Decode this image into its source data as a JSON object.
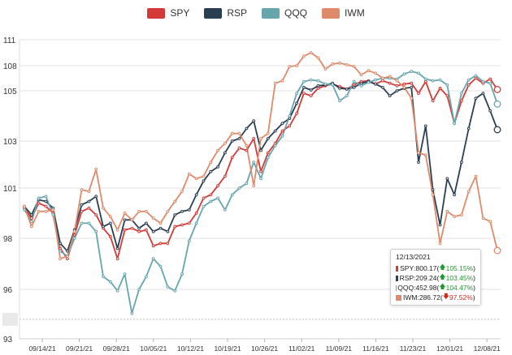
{
  "legend": {
    "items": [
      {
        "name": "SPY",
        "color": "#d33a37"
      },
      {
        "name": "RSP",
        "color": "#2b3f52"
      },
      {
        "name": "QQQ",
        "color": "#67a5ad"
      },
      {
        "name": "IWM",
        "color": "#df8a6a"
      }
    ]
  },
  "tooltip": {
    "date": "12/13/2021",
    "rows": [
      {
        "series": "SPY",
        "value": "800.17",
        "change": "105.15%",
        "direction": "up",
        "color": "#d33a37"
      },
      {
        "series": "RSP",
        "value": "209.24",
        "change": "103.45%",
        "direction": "up",
        "color": "#2b3f52"
      },
      {
        "series": "QQQ",
        "value": "452.98",
        "change": "104.47%",
        "direction": "up",
        "color": "#67a5ad"
      },
      {
        "series": "IWM",
        "value": "286.72",
        "change": "97.52%",
        "direction": "down",
        "color": "#df8a6a"
      }
    ]
  },
  "chart_data": {
    "type": "line",
    "x_tick_labels": [
      "09/14/21",
      "09/21/21",
      "09/28/21",
      "10/05/21",
      "10/12/21",
      "10/19/21",
      "10/26/21",
      "11/02/21",
      "11/09/21",
      "11/16/21",
      "11/23/21",
      "12/01/21",
      "12/08/21"
    ],
    "y_ticks": [
      93,
      94,
      96,
      98,
      101,
      103,
      105,
      108,
      111
    ],
    "y_tick_labels": [
      "93",
      "94",
      "96",
      "98",
      "101",
      "103",
      "105",
      "108",
      "111"
    ],
    "highlighted_y_tick": "94",
    "ylim": [
      93,
      111
    ],
    "grid": true,
    "legend_position": "top",
    "series": [
      {
        "name": "SPY",
        "color": "#d33a37",
        "values": [
          99.8,
          99.2,
          100.1,
          99.9,
          99.5,
          97.6,
          97.2,
          98.2,
          99.6,
          99.8,
          99.4,
          98.6,
          98.1,
          97.2,
          98.5,
          98.6,
          98.4,
          98.5,
          97.7,
          97.8,
          97.8,
          98.7,
          98.8,
          98.9,
          99.5,
          100.4,
          100.6,
          101.1,
          101.5,
          102.3,
          102.7,
          102.6,
          103.1,
          101.7,
          102.5,
          102.9,
          103.4,
          103.6,
          104.1,
          104.9,
          104.8,
          105.3,
          105.6,
          105.8,
          105.5,
          105.2,
          105.7,
          106.1,
          106.2,
          105.8,
          106.2,
          105.9,
          105.6,
          105.8,
          105.9,
          104.9,
          106.1,
          104.6,
          105.3,
          104.8,
          103.7,
          104.6,
          105.7,
          106.5,
          105.9,
          106.4,
          105.15
        ]
      },
      {
        "name": "RSP",
        "color": "#2b3f52",
        "values": [
          99.9,
          99.4,
          100.3,
          100.2,
          99.8,
          97.8,
          97.5,
          98.5,
          100.0,
          100.2,
          100.5,
          98.7,
          98.9,
          97.6,
          99.1,
          99.1,
          98.6,
          98.9,
          98.4,
          98.6,
          98.4,
          99.4,
          99.6,
          99.7,
          100.6,
          101.3,
          101.7,
          101.9,
          102.5,
          103.0,
          103.1,
          103.5,
          103.8,
          102.6,
          103.1,
          103.4,
          103.7,
          103.9,
          104.5,
          105.4,
          105.1,
          105.6,
          105.7,
          105.9,
          105.3,
          105.2,
          105.4,
          105.9,
          106.1,
          105.8,
          105.4,
          104.8,
          105.0,
          105.3,
          105.4,
          102.1,
          103.6,
          100.9,
          98.8,
          101.4,
          100.6,
          102.1,
          103.5,
          104.7,
          104.9,
          104.2,
          103.45
        ]
      },
      {
        "name": "QQQ",
        "color": "#67a5ad",
        "values": [
          99.7,
          99.0,
          100.4,
          100.5,
          99.4,
          97.5,
          97.3,
          98.0,
          98.9,
          98.9,
          98.4,
          96.5,
          96.3,
          95.9,
          96.6,
          94.4,
          96.0,
          96.5,
          97.2,
          96.9,
          96.1,
          95.9,
          96.6,
          97.9,
          98.9,
          99.9,
          100.2,
          100.4,
          99.7,
          100.6,
          101.0,
          101.2,
          102.1,
          101.4,
          102.3,
          102.8,
          103.2,
          104.0,
          104.9,
          106.1,
          106.3,
          106.2,
          105.8,
          105.7,
          104.6,
          104.8,
          106.1,
          105.6,
          106.0,
          106.3,
          106.5,
          106.5,
          106.4,
          107.0,
          107.3,
          107.1,
          106.4,
          106.2,
          106.3,
          105.7,
          103.7,
          104.9,
          106.3,
          106.8,
          106.1,
          105.9,
          104.47
        ]
      },
      {
        "name": "IWM",
        "color": "#df8a6a",
        "values": [
          99.9,
          98.7,
          99.6,
          99.6,
          99.7,
          97.2,
          97.3,
          98.4,
          100.9,
          100.8,
          101.8,
          99.8,
          99.3,
          98.5,
          99.5,
          99.1,
          99.6,
          99.6,
          99.2,
          98.9,
          99.6,
          100.2,
          100.8,
          101.6,
          101.4,
          101.5,
          102.1,
          102.6,
          102.9,
          103.3,
          103.3,
          102.8,
          101.1,
          103.1,
          103.3,
          105.9,
          106.2,
          107.9,
          108.0,
          109.1,
          109.5,
          108.9,
          107.6,
          108.2,
          108.3,
          108.1,
          107.9,
          106.9,
          107.4,
          107.1,
          106.5,
          106.7,
          106.2,
          105.4,
          104.7,
          102.5,
          102.4,
          100.6,
          97.8,
          99.6,
          99.3,
          99.4,
          100.8,
          101.5,
          99.2,
          99.0,
          97.52
        ]
      }
    ]
  }
}
